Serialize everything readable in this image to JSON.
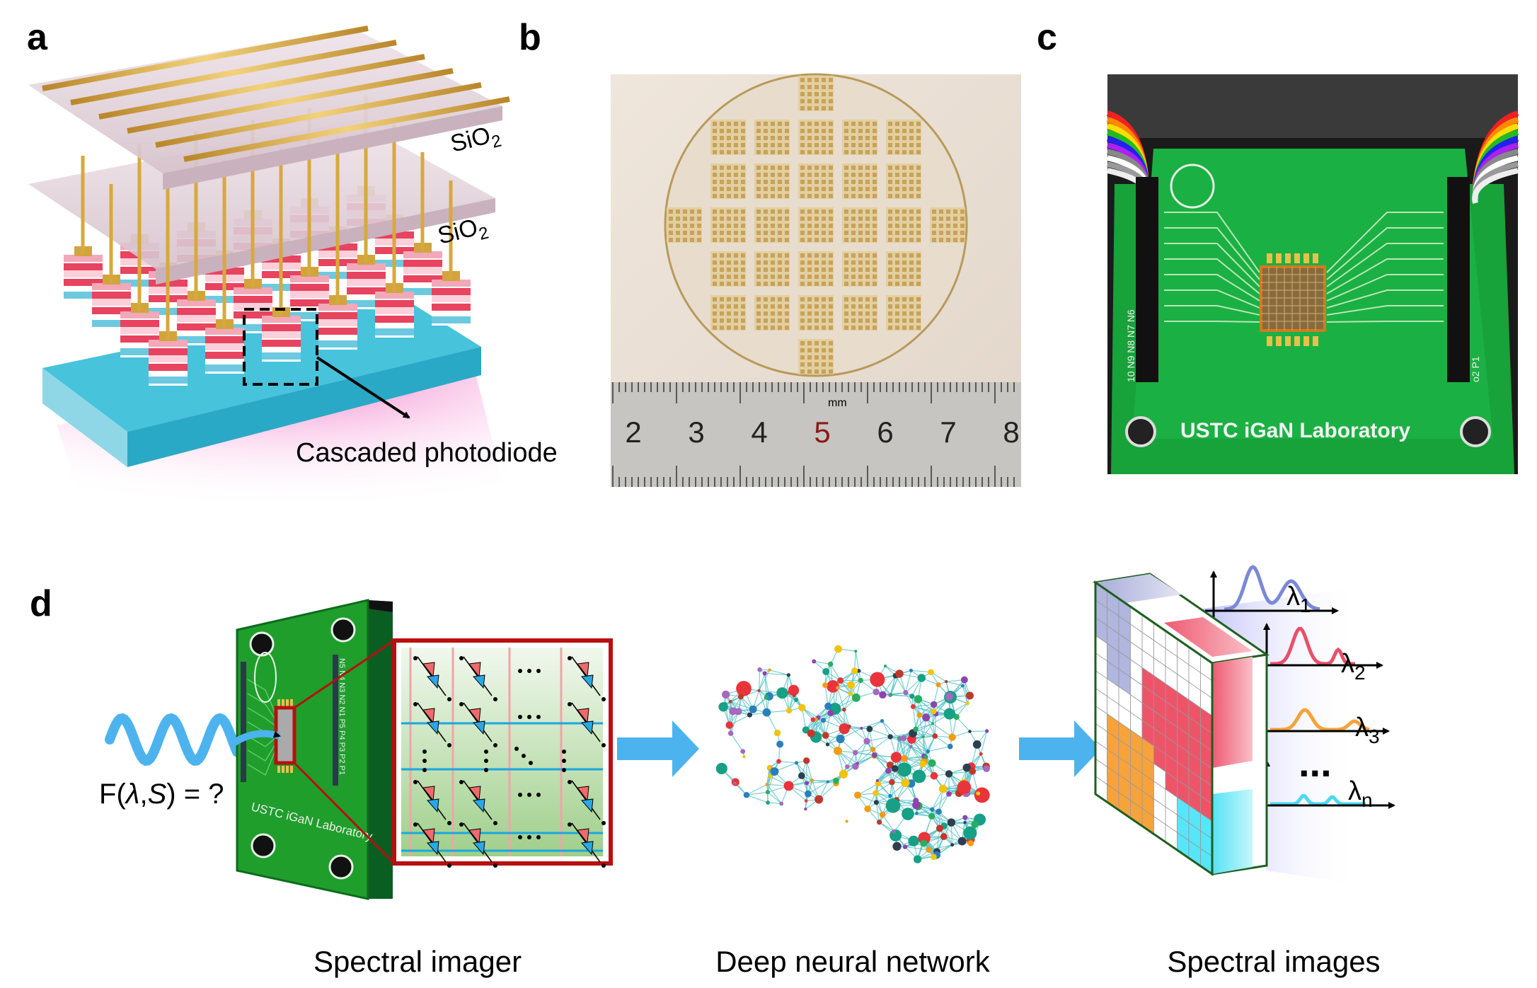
{
  "panels": {
    "a": {
      "label": "a",
      "layer_top": "SiO2",
      "layer_bottom": "SiO2",
      "callout": "Cascaded photodiode"
    },
    "b": {
      "label": "b",
      "ruler_unit": "mm",
      "ruler_numbers": [
        "2",
        "3",
        "4",
        "5",
        "6",
        "7",
        "8"
      ]
    },
    "c": {
      "label": "c",
      "board_text": "USTC iGaN Laboratory",
      "pin_labels_left": "10 N9 N8 N7 N6",
      "pin_labels_right": "o2 P1"
    },
    "d": {
      "label": "d",
      "equation": "F(λ,S) = ?",
      "board_text": "USTC iGaN Laboratory",
      "pin_labels": "N5 N4 N3 N2 N1 P5 P4 P3 P2 P1",
      "captions": {
        "imager": "Spectral imager",
        "network": "Deep neural network",
        "images": "Spectral images"
      },
      "ellipsis": "...",
      "wavelengths": [
        {
          "base": "λ",
          "sub": "1",
          "color": "#7b88d6"
        },
        {
          "base": "λ",
          "sub": "2",
          "color": "#e8506a"
        },
        {
          "base": "λ",
          "sub": "3",
          "color": "#f6a23a"
        },
        {
          "base": "λ",
          "sub": "n",
          "color": "#4fd8f0"
        }
      ]
    }
  },
  "colors": {
    "arrow": "#4db3ee",
    "pcb_green": "#1f9e2c",
    "highlight_red": "#b80f0f",
    "gold": "#d4a73a"
  }
}
